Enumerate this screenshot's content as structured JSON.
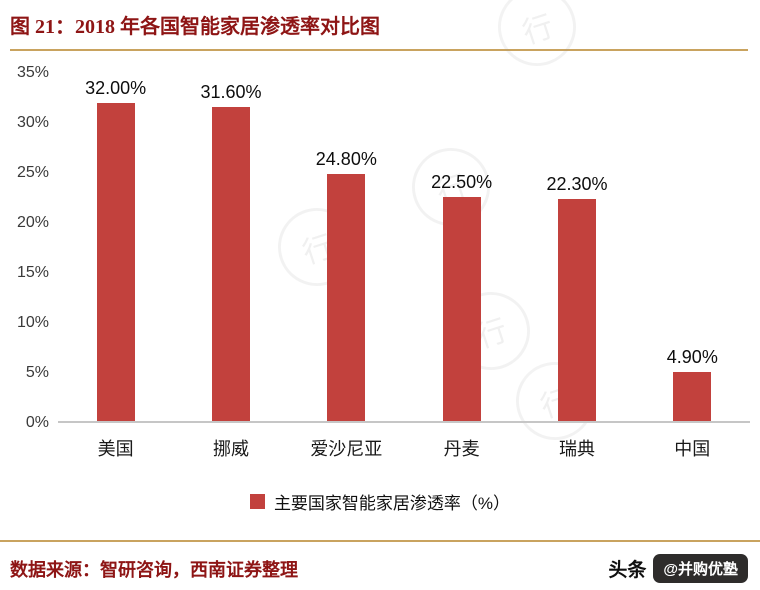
{
  "header": {
    "title": "图 21：2018 年各国智能家居渗透率对比图"
  },
  "chart_data": {
    "type": "bar",
    "title": "2018 年各国智能家居渗透率对比图",
    "categories": [
      "美国",
      "挪威",
      "爱沙尼亚",
      "丹麦",
      "瑞典",
      "中国"
    ],
    "values": [
      32.0,
      31.6,
      24.8,
      22.5,
      22.3,
      4.9
    ],
    "value_labels": [
      "32.00%",
      "31.60%",
      "24.80%",
      "22.50%",
      "22.30%",
      "4.90%"
    ],
    "ylim": [
      0,
      35
    ],
    "yticks": [
      "35%",
      "30%",
      "25%",
      "20%",
      "15%",
      "10%",
      "5%",
      "0%"
    ],
    "xlabel": "",
    "ylabel": "",
    "grid": false,
    "bar_color": "#c2413d",
    "legend_position": "bottom",
    "legend_entries": [
      "主要国家智能家居渗透率（%）"
    ]
  },
  "legend": {
    "label": "主要国家智能家居渗透率（%）"
  },
  "footer": {
    "source": "数据来源：智研咨询，西南证券整理",
    "brand_prefix": "头条",
    "brand_badge": "@并购优塾"
  },
  "watermark": {
    "glyph": "行"
  },
  "colors": {
    "title_red": "#8e1515",
    "bar_red": "#c2413d",
    "rule_gold": "#c9a35f"
  }
}
